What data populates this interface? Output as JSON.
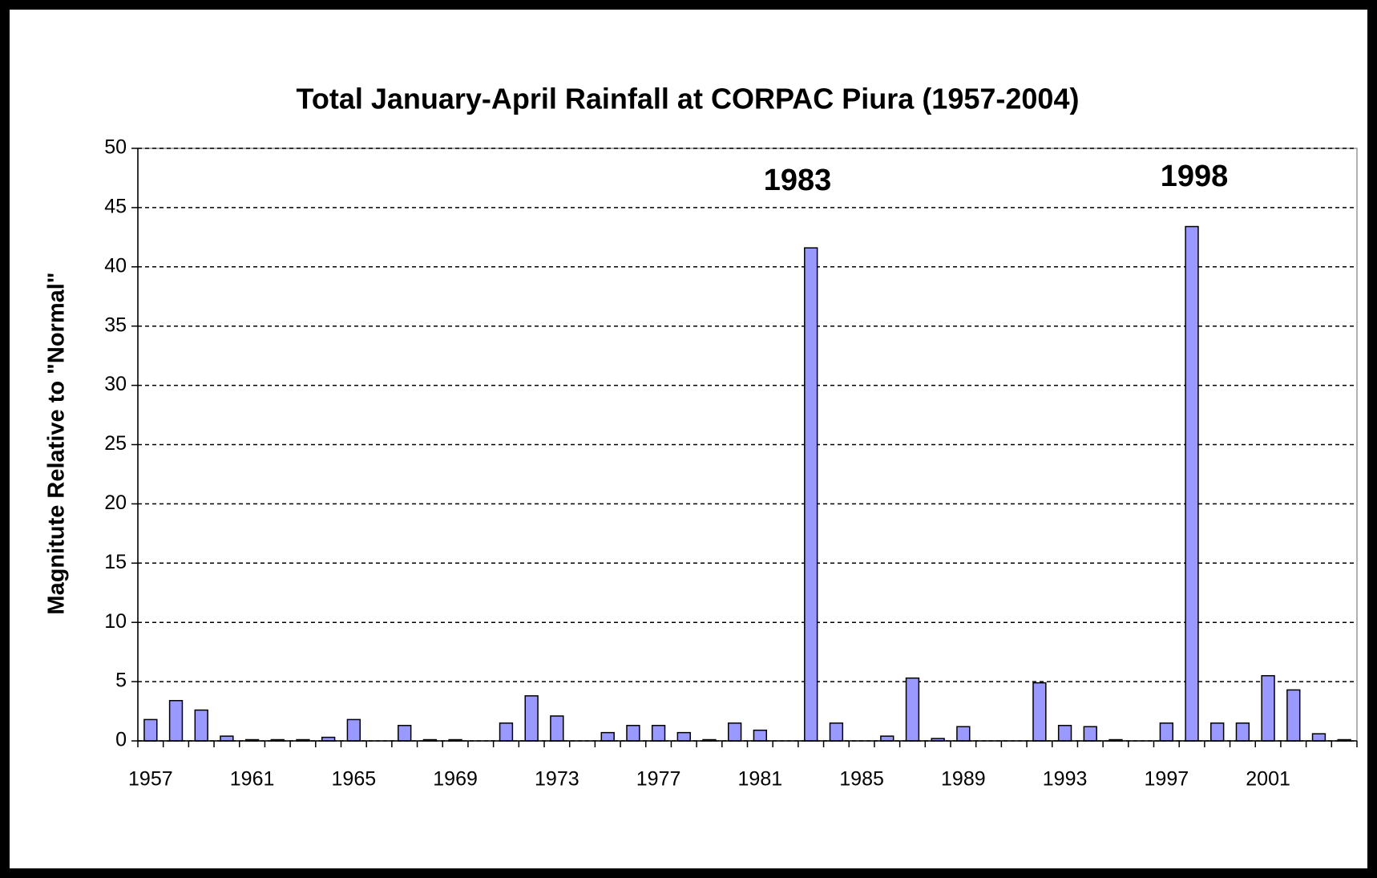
{
  "chart_data": {
    "type": "bar",
    "title": "Total January-April Rainfall at CORPAC Piura (1957-2004)",
    "y_label": "Magnitute Relative to \"Normal\"",
    "categories": [
      "1957",
      null,
      null,
      null,
      "1961",
      null,
      null,
      null,
      "1965",
      null,
      null,
      null,
      "1969",
      null,
      null,
      null,
      "1973",
      null,
      null,
      null,
      "1977",
      null,
      null,
      null,
      "1981",
      null,
      null,
      null,
      "1985",
      null,
      null,
      null,
      "1989",
      null,
      null,
      null,
      "1993",
      null,
      null,
      null,
      "1997",
      null,
      null,
      null,
      "2001",
      null,
      null,
      null
    ],
    "values": [
      1.8,
      3.4,
      2.6,
      0.4,
      0.1,
      0.1,
      0.1,
      0.3,
      1.8,
      0,
      1.3,
      0.1,
      0.1,
      0,
      1.5,
      3.8,
      2.1,
      0,
      0.7,
      1.3,
      1.3,
      0.7,
      0.1,
      1.5,
      0.9,
      0,
      41.6,
      1.5,
      0,
      0.4,
      5.3,
      0.2,
      1.2,
      0,
      0,
      4.9,
      1.3,
      1.2,
      0.1,
      0,
      1.5,
      43.4,
      1.5,
      1.5,
      5.5,
      4.3,
      0.6,
      0.1
    ],
    "color": "#9999ff",
    "ylim": [
      0,
      50
    ],
    "yticks": [
      0,
      5,
      10,
      15,
      20,
      25,
      30,
      35,
      40,
      45,
      50
    ],
    "grid": true,
    "annotations": [
      "1983",
      "1998"
    ]
  }
}
